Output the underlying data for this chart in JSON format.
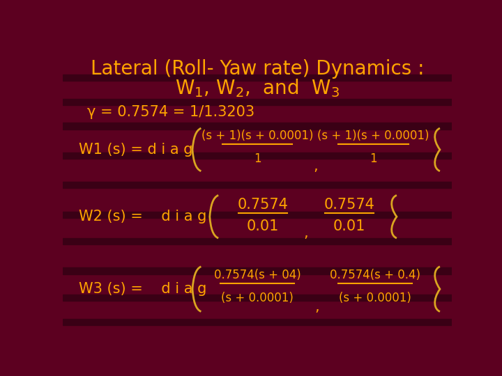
{
  "bg_color": "#5C0020",
  "text_color": "#FFA500",
  "title_line1": "Lateral (Roll- Yaw rate) Dynamics :",
  "title_line2": "W$_1$, W$_2$,  and  W$_3$",
  "gamma_line": "γ = 0.7574 = 1/1.3203",
  "title_fontsize": 20,
  "body_fontsize": 15,
  "small_fontsize": 12
}
